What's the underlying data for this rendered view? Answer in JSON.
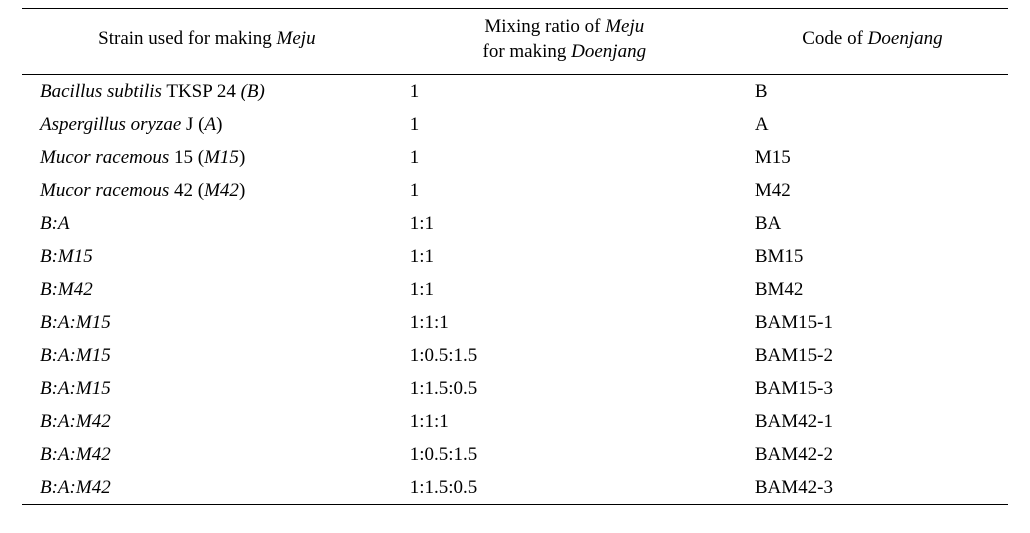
{
  "table": {
    "headers": {
      "col1_pre": "Strain used for making ",
      "col1_it": "Meju",
      "col2_line1_pre": "Mixing ratio of ",
      "col2_line1_it": "Meju",
      "col2_line2_pre": "for making ",
      "col2_line2_it": "Doenjang",
      "col3_pre": "Code of ",
      "col3_it": "Doenjang"
    },
    "rows": [
      {
        "strain_it": "Bacillus subtilis",
        "strain_mid": " TKSP 24 ",
        "strain_suffix_it": "(B)",
        "ratio": "1",
        "code": "B"
      },
      {
        "strain_it": "Aspergillus oryzae",
        "strain_mid": " J (",
        "strain_suffix_it": "A",
        "strain_tail": ")",
        "ratio": "1",
        "code": "A"
      },
      {
        "strain_it": "Mucor racemous",
        "strain_mid": " 15 (",
        "strain_suffix_it": "M15",
        "strain_tail": ")",
        "ratio": "1",
        "code": "M15"
      },
      {
        "strain_it": "Mucor racemous",
        "strain_mid": " 42 (",
        "strain_suffix_it": "M42",
        "strain_tail": ")",
        "ratio": "1",
        "code": "M42"
      },
      {
        "strain_it": "B:A",
        "ratio": "1:1",
        "code": "BA"
      },
      {
        "strain_it": "B:M15",
        "ratio": "1:1",
        "code": "BM15"
      },
      {
        "strain_it": "B:M42",
        "ratio": "1:1",
        "code": "BM42"
      },
      {
        "strain_it": "B:A:M15",
        "ratio": "1:1:1",
        "code": "BAM15-1"
      },
      {
        "strain_it": "B:A:M15",
        "ratio": "1:0.5:1.5",
        "code": "BAM15-2"
      },
      {
        "strain_it": "B:A:M15",
        "ratio": "1:1.5:0.5",
        "code": "BAM15-3"
      },
      {
        "strain_it": "B:A:M42",
        "ratio": "1:1:1",
        "code": "BAM42-1"
      },
      {
        "strain_it": "B:A:M42",
        "ratio": "1:0.5:1.5",
        "code": "BAM42-2"
      },
      {
        "strain_it": "B:A:M42",
        "ratio": "1:1.5:0.5",
        "code": "BAM42-3"
      }
    ]
  }
}
